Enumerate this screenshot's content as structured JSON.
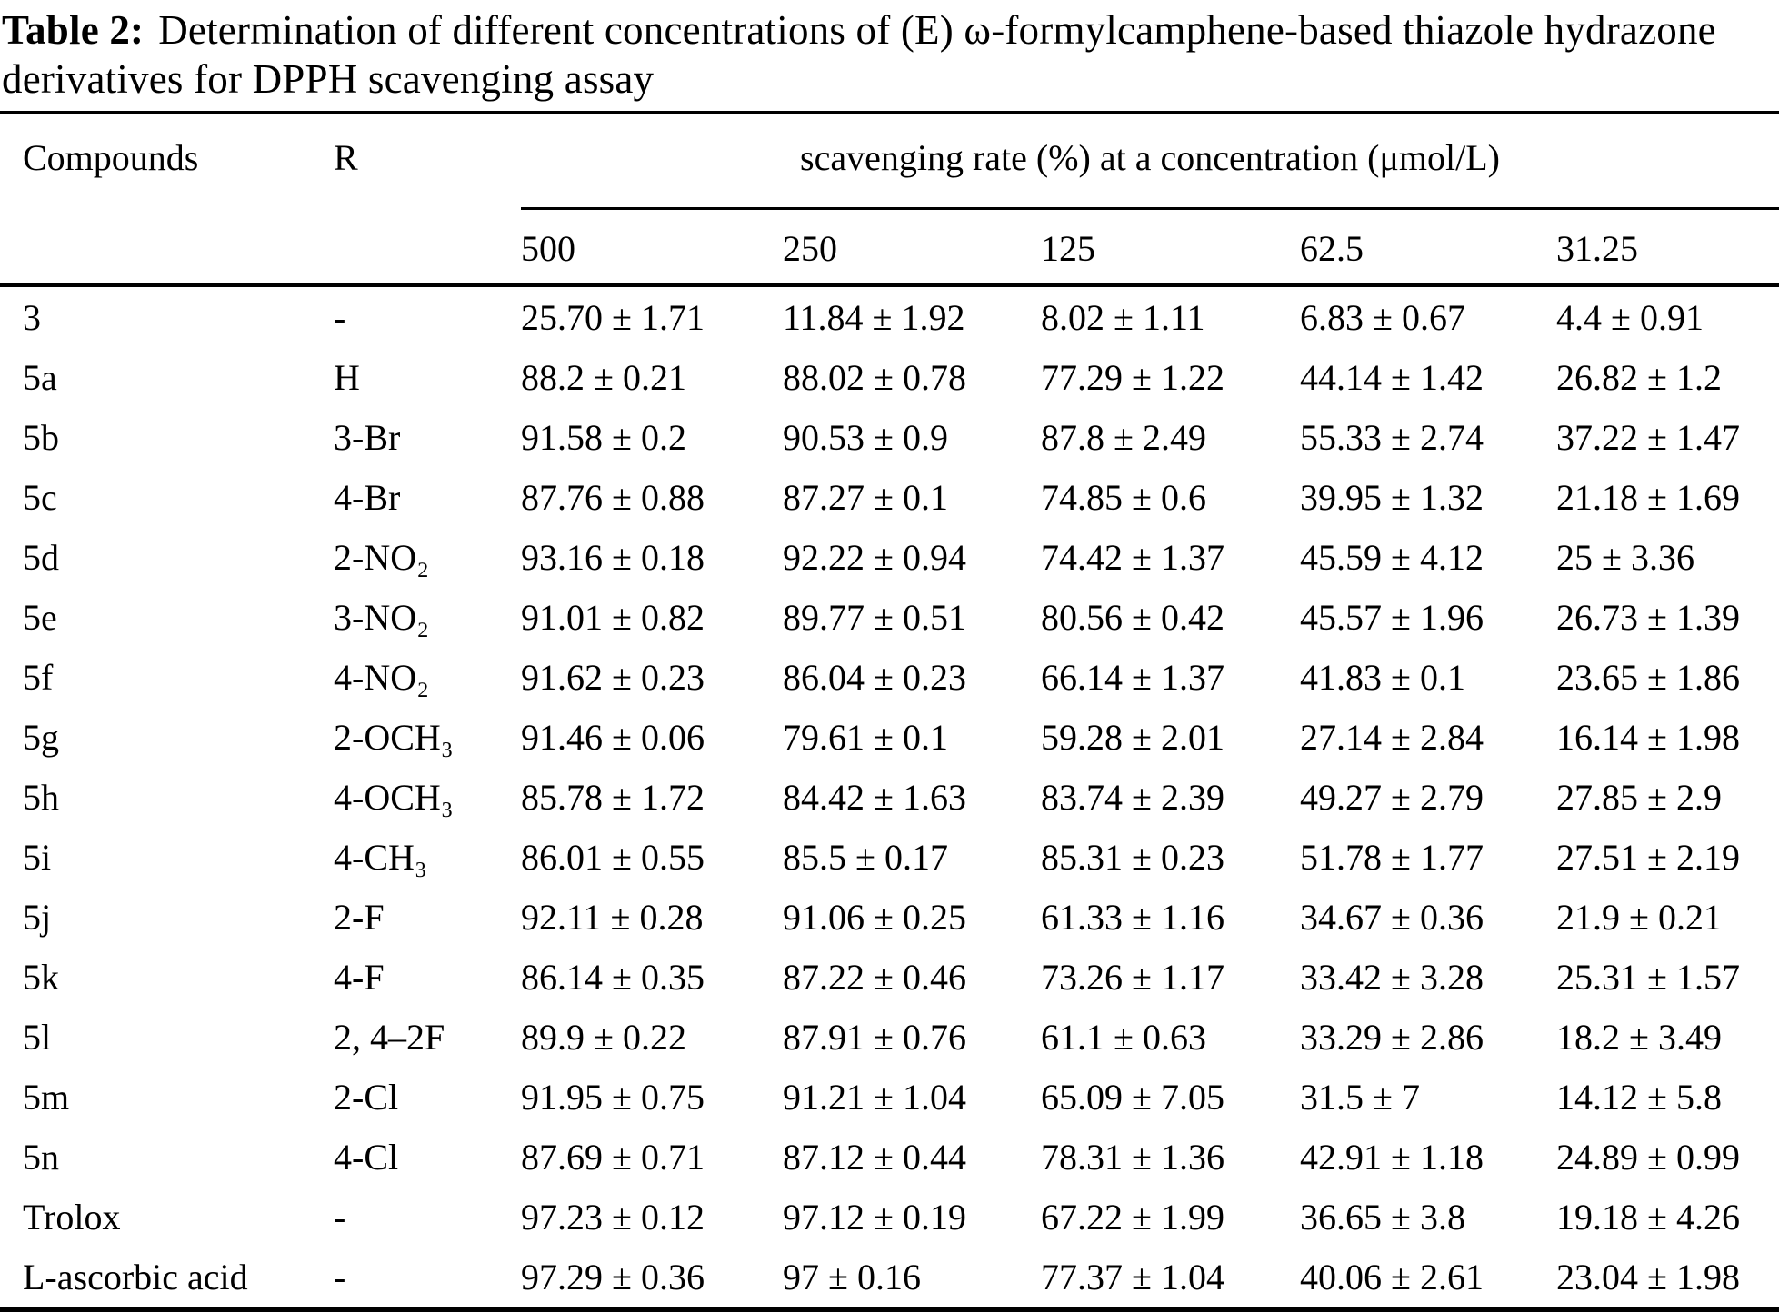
{
  "title": {
    "label": "Table 2:",
    "text": "Determination of different concentrations of (E) ω-formylcamphene-based thiazole hydrazone derivatives for DPPH scavenging assay"
  },
  "table": {
    "col_headers": {
      "compounds": "Compounds",
      "r": "R",
      "span": "scavenging rate (%) at a concentration (μmol/L)"
    },
    "concentrations": [
      "500",
      "250",
      "125",
      "62.5",
      "31.25"
    ],
    "rows": [
      {
        "compound": "3",
        "r": "-",
        "values": [
          "25.70 ± 1.71",
          "11.84 ± 1.92",
          "8.02 ± 1.11",
          "6.83 ± 0.67",
          "4.4 ± 0.91"
        ]
      },
      {
        "compound": "5a",
        "r": "H",
        "values": [
          "88.2 ± 0.21",
          "88.02 ± 0.78",
          "77.29 ± 1.22",
          "44.14 ± 1.42",
          "26.82 ± 1.2"
        ]
      },
      {
        "compound": "5b",
        "r": "3-Br",
        "values": [
          "91.58 ± 0.2",
          "90.53 ± 0.9",
          "87.8 ± 2.49",
          "55.33 ± 2.74",
          "37.22 ± 1.47"
        ]
      },
      {
        "compound": "5c",
        "r": "4-Br",
        "values": [
          "87.76 ± 0.88",
          "87.27 ± 0.1",
          "74.85 ± 0.6",
          "39.95 ± 1.32",
          "21.18 ± 1.69"
        ]
      },
      {
        "compound": "5d",
        "r": "2-NO₂",
        "values": [
          "93.16 ± 0.18",
          "92.22 ± 0.94",
          "74.42 ± 1.37",
          "45.59 ± 4.12",
          "25 ± 3.36"
        ]
      },
      {
        "compound": "5e",
        "r": "3-NO₂",
        "values": [
          "91.01 ± 0.82",
          "89.77 ± 0.51",
          "80.56 ± 0.42",
          "45.57 ± 1.96",
          "26.73 ± 1.39"
        ]
      },
      {
        "compound": "5f",
        "r": "4-NO₂",
        "values": [
          "91.62 ± 0.23",
          "86.04 ± 0.23",
          "66.14 ± 1.37",
          "41.83 ± 0.1",
          "23.65 ± 1.86"
        ]
      },
      {
        "compound": "5g",
        "r": "2-OCH₃",
        "values": [
          "91.46 ± 0.06",
          "79.61 ± 0.1",
          "59.28 ± 2.01",
          "27.14 ± 2.84",
          "16.14 ± 1.98"
        ]
      },
      {
        "compound": "5h",
        "r": "4-OCH₃",
        "values": [
          "85.78 ± 1.72",
          "84.42 ± 1.63",
          "83.74 ± 2.39",
          "49.27 ± 2.79",
          "27.85 ± 2.9"
        ]
      },
      {
        "compound": "5i",
        "r": "4-CH₃",
        "values": [
          "86.01 ± 0.55",
          "85.5 ± 0.17",
          "85.31 ± 0.23",
          "51.78 ± 1.77",
          "27.51 ± 2.19"
        ]
      },
      {
        "compound": "5j",
        "r": "2-F",
        "values": [
          "92.11 ± 0.28",
          "91.06 ± 0.25",
          "61.33 ± 1.16",
          "34.67 ± 0.36",
          "21.9 ± 0.21"
        ]
      },
      {
        "compound": "5k",
        "r": "4-F",
        "values": [
          "86.14 ± 0.35",
          "87.22 ± 0.46",
          "73.26 ± 1.17",
          "33.42 ± 3.28",
          "25.31 ± 1.57"
        ]
      },
      {
        "compound": "5l",
        "r": "2, 4–2F",
        "values": [
          "89.9 ± 0.22",
          "87.91 ± 0.76",
          "61.1 ± 0.63",
          "33.29 ± 2.86",
          "18.2 ± 3.49"
        ]
      },
      {
        "compound": "5m",
        "r": "2-Cl",
        "values": [
          "91.95 ± 0.75",
          "91.21 ± 1.04",
          "65.09 ± 7.05",
          "31.5 ± 7",
          "14.12 ± 5.8"
        ]
      },
      {
        "compound": "5n",
        "r": "4-Cl",
        "values": [
          "87.69 ± 0.71",
          "87.12 ± 0.44",
          "78.31 ± 1.36",
          "42.91 ± 1.18",
          "24.89 ± 0.99"
        ]
      },
      {
        "compound": "Trolox",
        "r": "-",
        "values": [
          "97.23 ± 0.12",
          "97.12 ± 0.19",
          "67.22 ± 1.99",
          "36.65 ± 3.8",
          "19.18 ± 4.26"
        ]
      },
      {
        "compound": "L-ascorbic acid",
        "r": "-",
        "values": [
          "97.29 ± 0.36",
          "97 ± 0.16",
          "77.37 ± 1.04",
          "40.06 ± 2.61",
          "23.04 ± 1.98"
        ]
      }
    ]
  }
}
